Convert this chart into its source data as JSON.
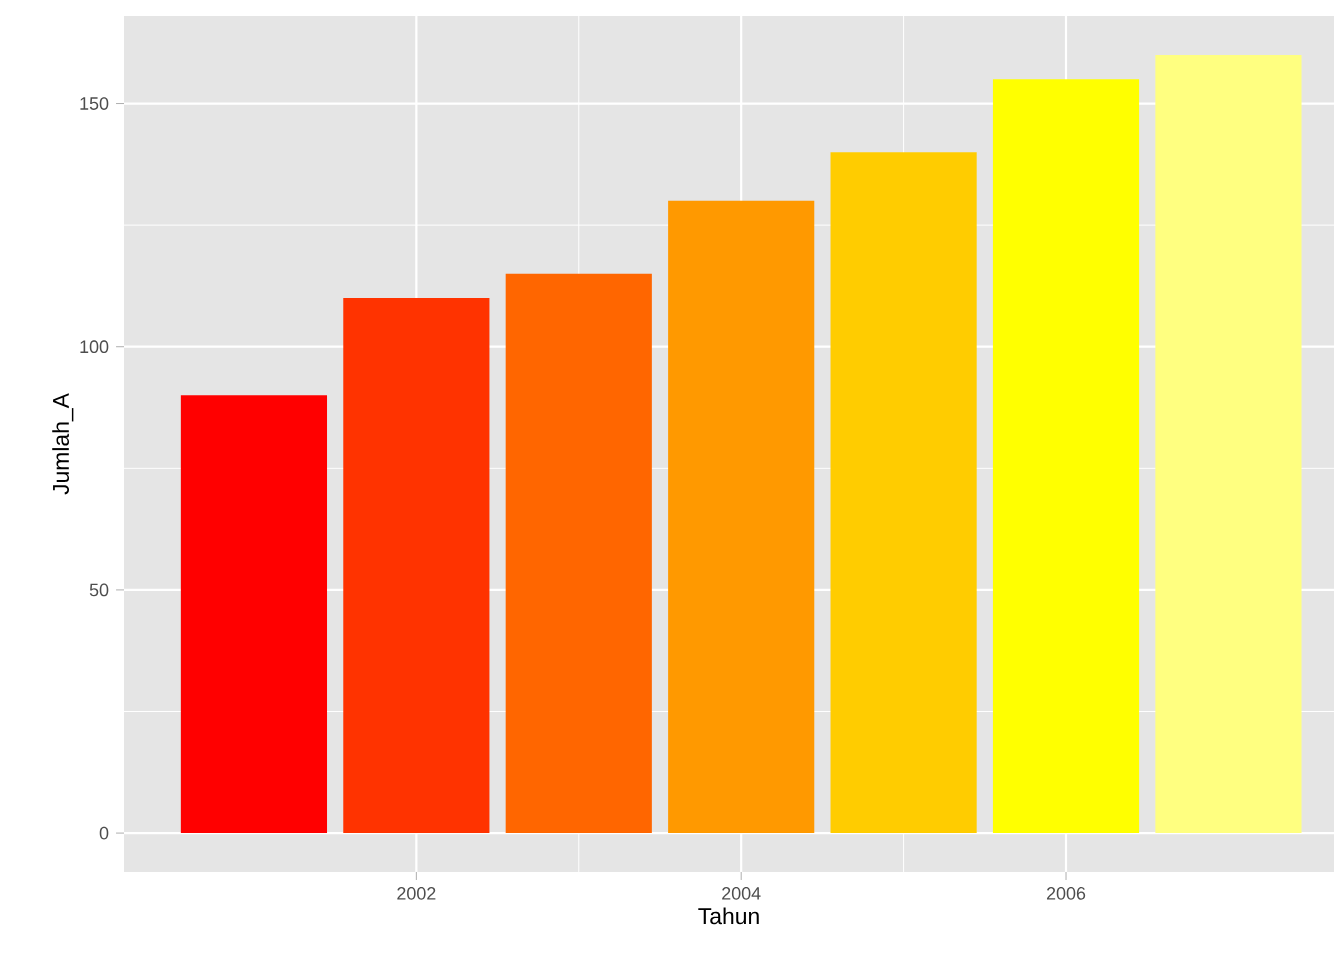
{
  "chart_data": {
    "type": "bar",
    "xlabel": "Tahun",
    "ylabel": "Jumlah_A",
    "x": [
      2001,
      2002,
      2003,
      2004,
      2005,
      2006,
      2007
    ],
    "values": [
      90,
      110,
      115,
      130,
      140,
      155,
      160
    ],
    "colors": [
      "#ff0000",
      "#ff3300",
      "#ff6600",
      "#ff9900",
      "#ffcc00",
      "#ffff00",
      "#ffff80"
    ],
    "xlim": [
      2000.2,
      2007.65
    ],
    "ylim": [
      -8,
      168
    ],
    "xticks": [
      2002,
      2004,
      2006
    ],
    "yticks": [
      0,
      50,
      100,
      150
    ],
    "grid": true
  }
}
